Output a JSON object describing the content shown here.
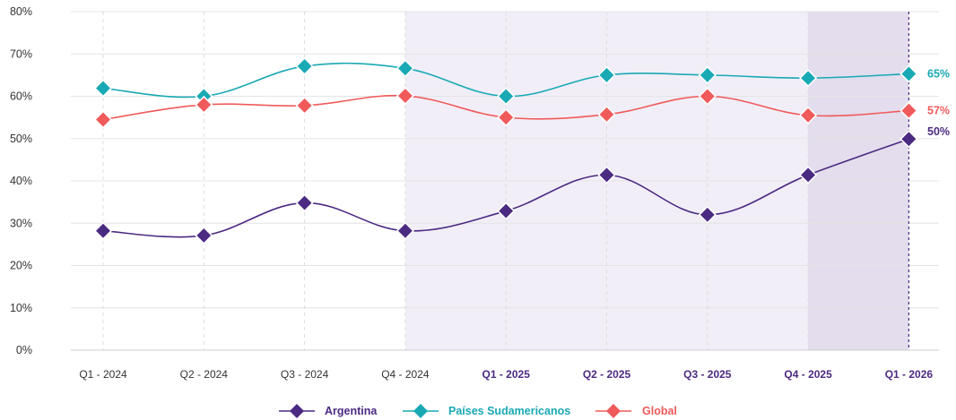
{
  "chart_data": {
    "type": "line",
    "title": "",
    "xlabel": "",
    "ylabel": "",
    "ylim": [
      0,
      80
    ],
    "y_ticks": [
      "0%",
      "10%",
      "20%",
      "30%",
      "40%",
      "50%",
      "60%",
      "70%",
      "80%"
    ],
    "categories": [
      "Q1 - 2024",
      "Q2 - 2024",
      "Q3 - 2024",
      "Q4 - 2024",
      "Q1 - 2025",
      "Q2 - 2025",
      "Q3 - 2025",
      "Q4 - 2025",
      "Q1 - 2026"
    ],
    "grid": true,
    "legend_position": "bottom",
    "shaded_regions": [
      {
        "from": "Q4 - 2024",
        "to": "Q1 - 2026",
        "color": "#f1eef8"
      },
      {
        "from": "Q4 - 2025",
        "to": "Q1 - 2026",
        "color": "#e3dded"
      }
    ],
    "series": [
      {
        "name": "Argentina",
        "color": "#4b2a82",
        "values": [
          28.2,
          27.1,
          34.8,
          28.2,
          32.9,
          41.4,
          32.0,
          41.4,
          49.9
        ],
        "end_label": "50%"
      },
      {
        "name": "Países Sudamericanos",
        "color": "#19a9b5",
        "values": [
          61.9,
          60.0,
          67.1,
          66.6,
          60.0,
          65.0,
          65.0,
          64.3,
          65.3
        ],
        "end_label": "65%"
      },
      {
        "name": "Global",
        "color": "#f05a5a",
        "values": [
          54.5,
          58.0,
          57.8,
          60.1,
          55.0,
          55.7,
          60.0,
          55.5,
          56.6
        ],
        "end_label": "57%"
      }
    ]
  }
}
